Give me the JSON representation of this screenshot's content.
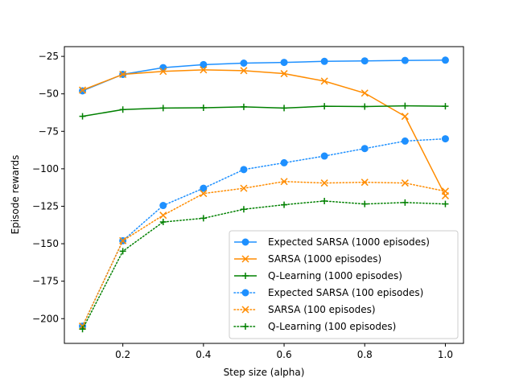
{
  "chart_data": {
    "type": "line",
    "title": "",
    "xlabel": "Step size (alpha)",
    "ylabel": "Episode rewards",
    "xlim": [
      0.055,
      1.045
    ],
    "ylim": [
      -216.5,
      -18.5
    ],
    "xticks": [
      0.2,
      0.4,
      0.6,
      0.8,
      1.0
    ],
    "xtick_labels": [
      "0.2",
      "0.4",
      "0.6",
      "0.8",
      "1.0"
    ],
    "yticks": [
      -200,
      -175,
      -150,
      -125,
      -100,
      -75,
      -50,
      -25
    ],
    "ytick_labels": [
      "−200",
      "−175",
      "−150",
      "−125",
      "−100",
      "−75",
      "−50",
      "−25"
    ],
    "grid": false,
    "legend_position": "lower-right",
    "x": [
      0.1,
      0.2,
      0.3,
      0.4,
      0.5,
      0.6,
      0.7,
      0.8,
      0.9,
      1.0
    ],
    "series": [
      {
        "name": "Expected SARSA (1000 episodes)",
        "color": "#1e90ff",
        "style": "solid",
        "marker": "circle",
        "values": [
          -48,
          -37,
          -32.5,
          -30.5,
          -29.5,
          -29,
          -28.3,
          -28,
          -27.7,
          -27.5
        ]
      },
      {
        "name": "SARSA (1000 episodes)",
        "color": "#ff8c00",
        "style": "solid",
        "marker": "x",
        "values": [
          -47.5,
          -37,
          -35,
          -34,
          -34.5,
          -36.5,
          -41.5,
          -49.5,
          -65,
          -118
        ]
      },
      {
        "name": "Q-Learning (1000 episodes)",
        "color": "#008000",
        "style": "solid",
        "marker": "plus",
        "values": [
          -65,
          -60.5,
          -59.5,
          -59.3,
          -58.7,
          -59.5,
          -58.3,
          -58.5,
          -58,
          -58.3
        ]
      },
      {
        "name": "Expected SARSA (100 episodes)",
        "color": "#1e90ff",
        "style": "dotted",
        "marker": "circle",
        "values": [
          -205,
          -148,
          -124.5,
          -113,
          -100.5,
          -96,
          -91.5,
          -86.5,
          -81.5,
          -80
        ]
      },
      {
        "name": "SARSA (100 episodes)",
        "color": "#ff8c00",
        "style": "dotted",
        "marker": "x",
        "values": [
          -205,
          -148,
          -131,
          -116.5,
          -113,
          -108.5,
          -109.5,
          -109,
          -109.5,
          -115
        ]
      },
      {
        "name": "Q-Learning (100 episodes)",
        "color": "#008000",
        "style": "dotted",
        "marker": "plus",
        "values": [
          -207,
          -155,
          -135.5,
          -133,
          -127,
          -124,
          -121.5,
          -123.5,
          -122.5,
          -123.5
        ]
      }
    ]
  }
}
